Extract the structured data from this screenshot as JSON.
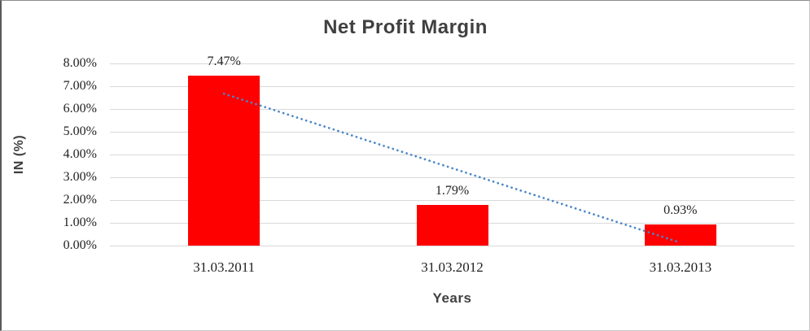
{
  "chart_data": {
    "type": "bar",
    "title": "Net Profit Margin",
    "xlabel": "Years",
    "ylabel": "IN (%)",
    "categories": [
      "31.03.2011",
      "31.03.2012",
      "31.03.2013"
    ],
    "values": [
      7.47,
      1.79,
      0.93
    ],
    "value_labels": [
      "7.47%",
      "1.79%",
      "0.93%"
    ],
    "yticks": [
      "8.00%",
      "7.00%",
      "6.00%",
      "5.00%",
      "4.00%",
      "3.00%",
      "2.00%",
      "1.00%",
      "0.00%"
    ],
    "ylim": [
      0,
      8
    ],
    "ytick_step": 1,
    "grid": "horizontal-only",
    "legend": "none",
    "bar_color": "#ff0000",
    "trendline": {
      "type": "linear",
      "style": "dotted",
      "color": "#4a86c8",
      "start_value": 6.67,
      "end_value": 0.13
    },
    "gridline_color": "#d9d9d9",
    "title_color": "#404040",
    "axis_text_color": "#1f1f1f"
  }
}
